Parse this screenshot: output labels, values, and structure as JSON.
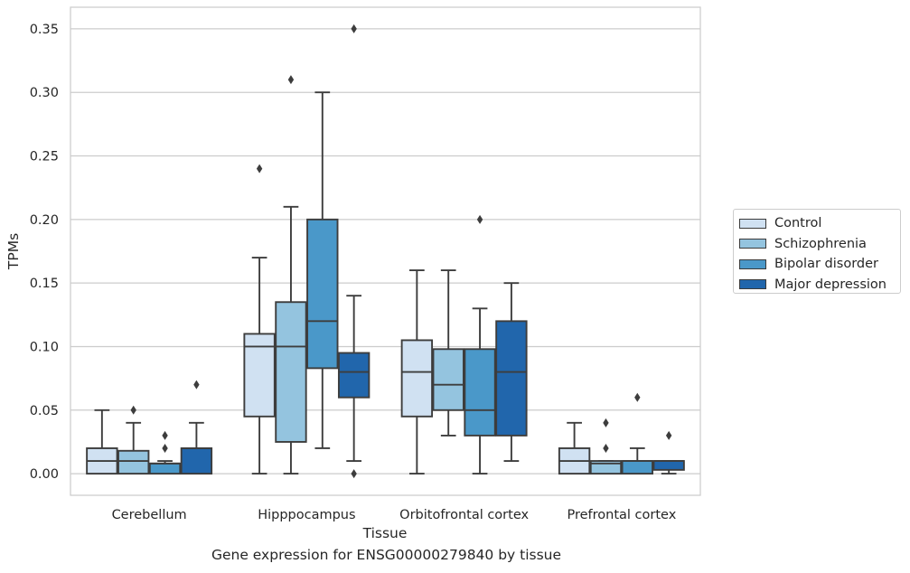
{
  "chart_data": {
    "type": "box",
    "categories": [
      "Cerebellum",
      "Hipppocampus",
      "Orbitofrontal cortex",
      "Prefrontal cortex"
    ],
    "xlabel": "Tissue",
    "ylabel": "TPMs",
    "caption": "Gene expression for ENSG00000279840 by tissue",
    "ylim": [
      -0.017,
      0.367
    ],
    "yticks": [
      "0.00",
      "0.05",
      "0.10",
      "0.15",
      "0.20",
      "0.25",
      "0.30",
      "0.35"
    ],
    "ytick_values": [
      0,
      0.05,
      0.1,
      0.15,
      0.2,
      0.25,
      0.3,
      0.35
    ],
    "grid": true,
    "legend_position": "right",
    "series": [
      {
        "name": "Control",
        "color": "#d0e1f2",
        "boxes": [
          {
            "whislo": 0,
            "q1": 0,
            "med": 0.01,
            "q3": 0.02,
            "whishi": 0.05,
            "fliers": []
          },
          {
            "whislo": 0,
            "q1": 0.045,
            "med": 0.1,
            "q3": 0.11,
            "whishi": 0.17,
            "fliers": [
              0.24
            ]
          },
          {
            "whislo": 0,
            "q1": 0.045,
            "med": 0.08,
            "q3": 0.105,
            "whishi": 0.16,
            "fliers": []
          },
          {
            "whislo": 0,
            "q1": 0,
            "med": 0.01,
            "q3": 0.02,
            "whishi": 0.04,
            "fliers": []
          }
        ]
      },
      {
        "name": "Schizophrenia",
        "color": "#94c4df",
        "boxes": [
          {
            "whislo": 0,
            "q1": 0,
            "med": 0.01,
            "q3": 0.018,
            "whishi": 0.04,
            "fliers": [
              0.05
            ]
          },
          {
            "whislo": 0,
            "q1": 0.025,
            "med": 0.1,
            "q3": 0.135,
            "whishi": 0.21,
            "fliers": [
              0.31
            ]
          },
          {
            "whislo": 0.03,
            "q1": 0.05,
            "med": 0.07,
            "q3": 0.098,
            "whishi": 0.16,
            "fliers": []
          },
          {
            "whislo": 0,
            "q1": 0,
            "med": 0.008,
            "q3": 0.01,
            "whishi": 0.01,
            "fliers": [
              0.02,
              0.04
            ]
          }
        ]
      },
      {
        "name": "Bipolar disorder",
        "color": "#4a98c9",
        "boxes": [
          {
            "whislo": 0,
            "q1": 0,
            "med": 0.008,
            "q3": 0.008,
            "whishi": 0.01,
            "fliers": [
              0.02,
              0.03
            ]
          },
          {
            "whislo": 0.02,
            "q1": 0.083,
            "med": 0.12,
            "q3": 0.2,
            "whishi": 0.3,
            "fliers": []
          },
          {
            "whislo": 0,
            "q1": 0.03,
            "med": 0.05,
            "q3": 0.098,
            "whishi": 0.13,
            "fliers": [
              0.2
            ]
          },
          {
            "whislo": 0,
            "q1": 0,
            "med": 0.01,
            "q3": 0.01,
            "whishi": 0.02,
            "fliers": [
              0.06
            ]
          }
        ]
      },
      {
        "name": "Major depression",
        "color": "#2166ac",
        "boxes": [
          {
            "whislo": 0,
            "q1": 0,
            "med": 0.02,
            "q3": 0.02,
            "whishi": 0.04,
            "fliers": [
              0.07
            ]
          },
          {
            "whislo": 0.01,
            "q1": 0.06,
            "med": 0.08,
            "q3": 0.095,
            "whishi": 0.14,
            "fliers": [
              0,
              0.35
            ]
          },
          {
            "whislo": 0.01,
            "q1": 0.03,
            "med": 0.08,
            "q3": 0.12,
            "whishi": 0.15,
            "fliers": []
          },
          {
            "whislo": 0,
            "q1": 0.003,
            "med": 0.01,
            "q3": 0.01,
            "whishi": 0.01,
            "fliers": [
              0.03
            ]
          }
        ]
      }
    ]
  }
}
